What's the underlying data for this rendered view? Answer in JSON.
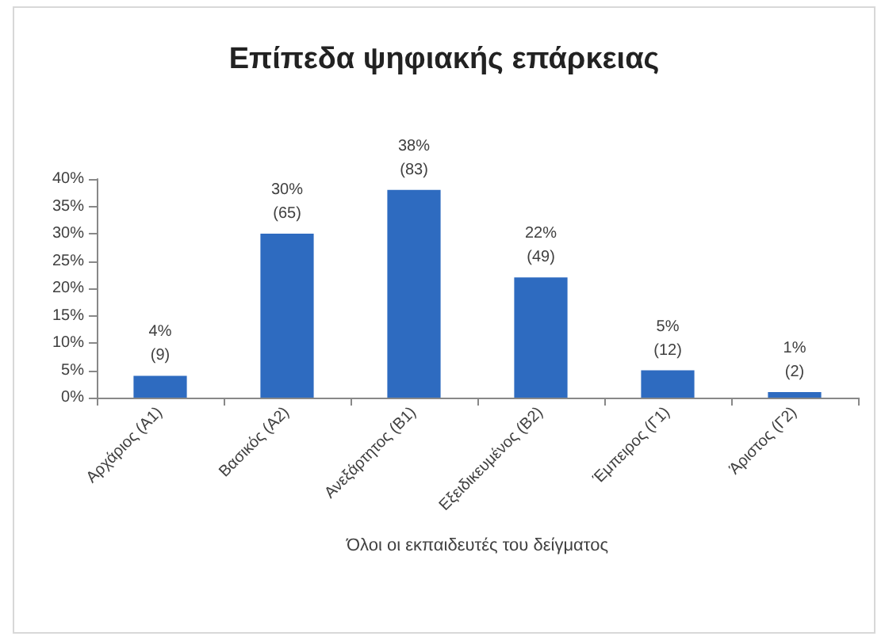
{
  "chart_data": {
    "type": "bar",
    "title": "Επίπεδα ψηφιακής επάρκειας",
    "xlabel": "Όλοι οι εκπαιδευτές του δείγματος",
    "categories": [
      "Αρχάριος (Α1)",
      "Βασικός (Α2)",
      "Ανεξάρτητος (Β1)",
      "Εξειδικευμένος (Β2)",
      "Έμπειρος (Γ1)",
      "Άριστος (Γ2)"
    ],
    "values": [
      4,
      30,
      38,
      22,
      5,
      1
    ],
    "value_labels": [
      "4%\n(9)",
      "30%\n(65)",
      "38%\n(83)",
      "22%\n(49)",
      "5%\n(12)",
      "1%\n(2)"
    ],
    "color": "#2e6bc0",
    "ylim": [
      0,
      40
    ],
    "yticks": [
      {
        "value": 0,
        "label": "0%"
      },
      {
        "value": 5,
        "label": "5%"
      },
      {
        "value": 10,
        "label": "10%"
      },
      {
        "value": 15,
        "label": "15%"
      },
      {
        "value": 20,
        "label": "20%"
      },
      {
        "value": 25,
        "label": "25%"
      },
      {
        "value": 30,
        "label": "30%"
      },
      {
        "value": 35,
        "label": "35%"
      },
      {
        "value": 40,
        "label": "40%"
      }
    ],
    "grid": false
  }
}
